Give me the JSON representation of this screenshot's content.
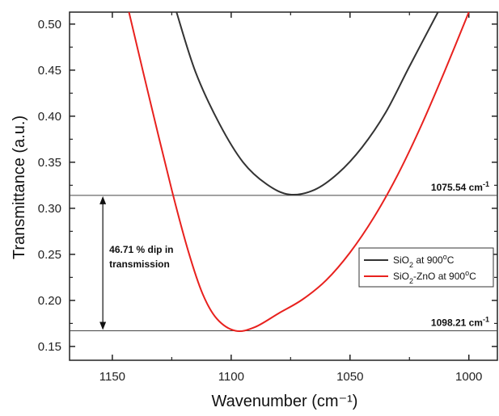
{
  "chart_data": {
    "type": "line",
    "xlabel": "Wavenumber (cm⁻¹)",
    "ylabel": "Transmittance (a.u.)",
    "xlim": [
      1168,
      988
    ],
    "ylim": [
      0.135,
      0.513
    ],
    "x_reversed": true,
    "x_ticks": [
      1150,
      1100,
      1050,
      1000
    ],
    "y_ticks": [
      0.15,
      0.2,
      0.25,
      0.3,
      0.35,
      0.4,
      0.45,
      0.5
    ],
    "y_tick_labels": [
      "0.15",
      "0.20",
      "0.25",
      "0.30",
      "0.35",
      "0.40",
      "0.45",
      "0.50"
    ],
    "grid": false,
    "legend_position": "lower-right",
    "series": [
      {
        "name": "SiO₂ at 900°C",
        "color": "#333333",
        "x": [
          1123,
          1115,
          1105,
          1095,
          1085,
          1075.5,
          1065,
          1055,
          1045,
          1035,
          1025,
          1013
        ],
        "y": [
          0.513,
          0.448,
          0.392,
          0.35,
          0.326,
          0.315,
          0.32,
          0.338,
          0.366,
          0.404,
          0.454,
          0.513
        ]
      },
      {
        "name": "SiO₂-ZnO at 900°C",
        "color": "#e8211e",
        "x": [
          1143,
          1135,
          1125,
          1118,
          1112,
          1106,
          1098.2,
          1090,
          1080,
          1070,
          1060,
          1050,
          1040,
          1030,
          1020,
          1010,
          1000
        ],
        "y": [
          0.513,
          0.426,
          0.32,
          0.253,
          0.207,
          0.18,
          0.167,
          0.171,
          0.186,
          0.201,
          0.222,
          0.252,
          0.29,
          0.336,
          0.39,
          0.45,
          0.513
        ]
      }
    ],
    "annotations": {
      "upper_line_value": 0.314,
      "lower_line_value": 0.167,
      "upper_label": "1075.54 cm",
      "upper_label_sup": "-1",
      "lower_label": "1098.21 cm",
      "lower_label_sup": "-1",
      "dip_text_line1": "46.71 % dip in",
      "dip_text_line2": "transmission",
      "arrow_x": 1154
    },
    "legend": {
      "entries": [
        {
          "prefix": "SiO",
          "sub": "2",
          "suffix": " at 900",
          "sup": "o",
          "end": "C",
          "color": "#333333"
        },
        {
          "prefix": "SiO",
          "sub": "2",
          "suffix": "-ZnO at 900",
          "sup": "o",
          "end": "C",
          "color": "#e8211e"
        }
      ]
    }
  }
}
